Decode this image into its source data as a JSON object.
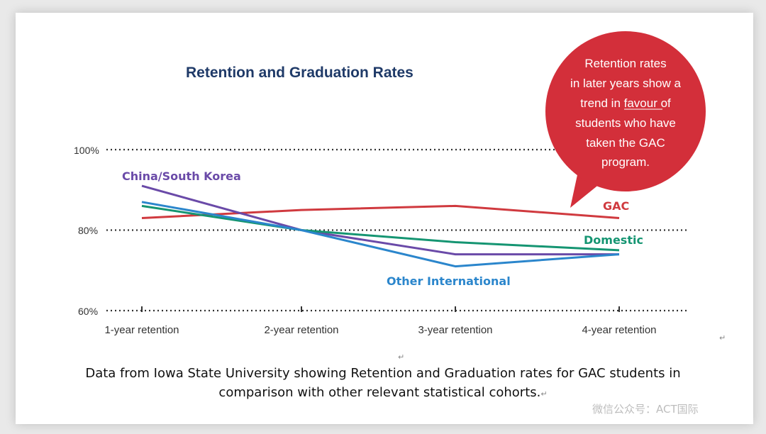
{
  "chart_data": {
    "type": "line",
    "title": "Retention and Graduation Rates",
    "categories": [
      "1-year retention",
      "2-year retention",
      "3-year retention",
      "4-year retention"
    ],
    "y_ticks": [
      "100%",
      "80%",
      "60%"
    ],
    "ylim": [
      60,
      100
    ],
    "grid": "dotted horizontal at 60, 80, 100",
    "series": [
      {
        "name": "GAC",
        "color": "#d03a3f",
        "values": [
          83,
          85,
          86,
          83
        ]
      },
      {
        "name": "China/South Korea",
        "color": "#6a4aa8",
        "values": [
          91,
          80,
          74,
          74
        ]
      },
      {
        "name": "Domestic",
        "color": "#159572",
        "values": [
          86,
          80,
          77,
          75
        ]
      },
      {
        "name": "Other International",
        "color": "#2b86cc",
        "values": [
          87,
          80,
          71,
          74
        ]
      }
    ],
    "annotation": {
      "lines": [
        "Retention rates",
        "in later years show a",
        "trend in favour of",
        "students who have",
        "taken the GAC",
        "program."
      ],
      "color": "#d32f3a"
    }
  },
  "caption": {
    "line1": "Data from Iowa State University showing Retention and Graduation rates for GAC students in",
    "line2": "comparison with other relevant statistical cohorts."
  },
  "watermark": "微信公众号：ACT国际",
  "return_mark": "↵"
}
